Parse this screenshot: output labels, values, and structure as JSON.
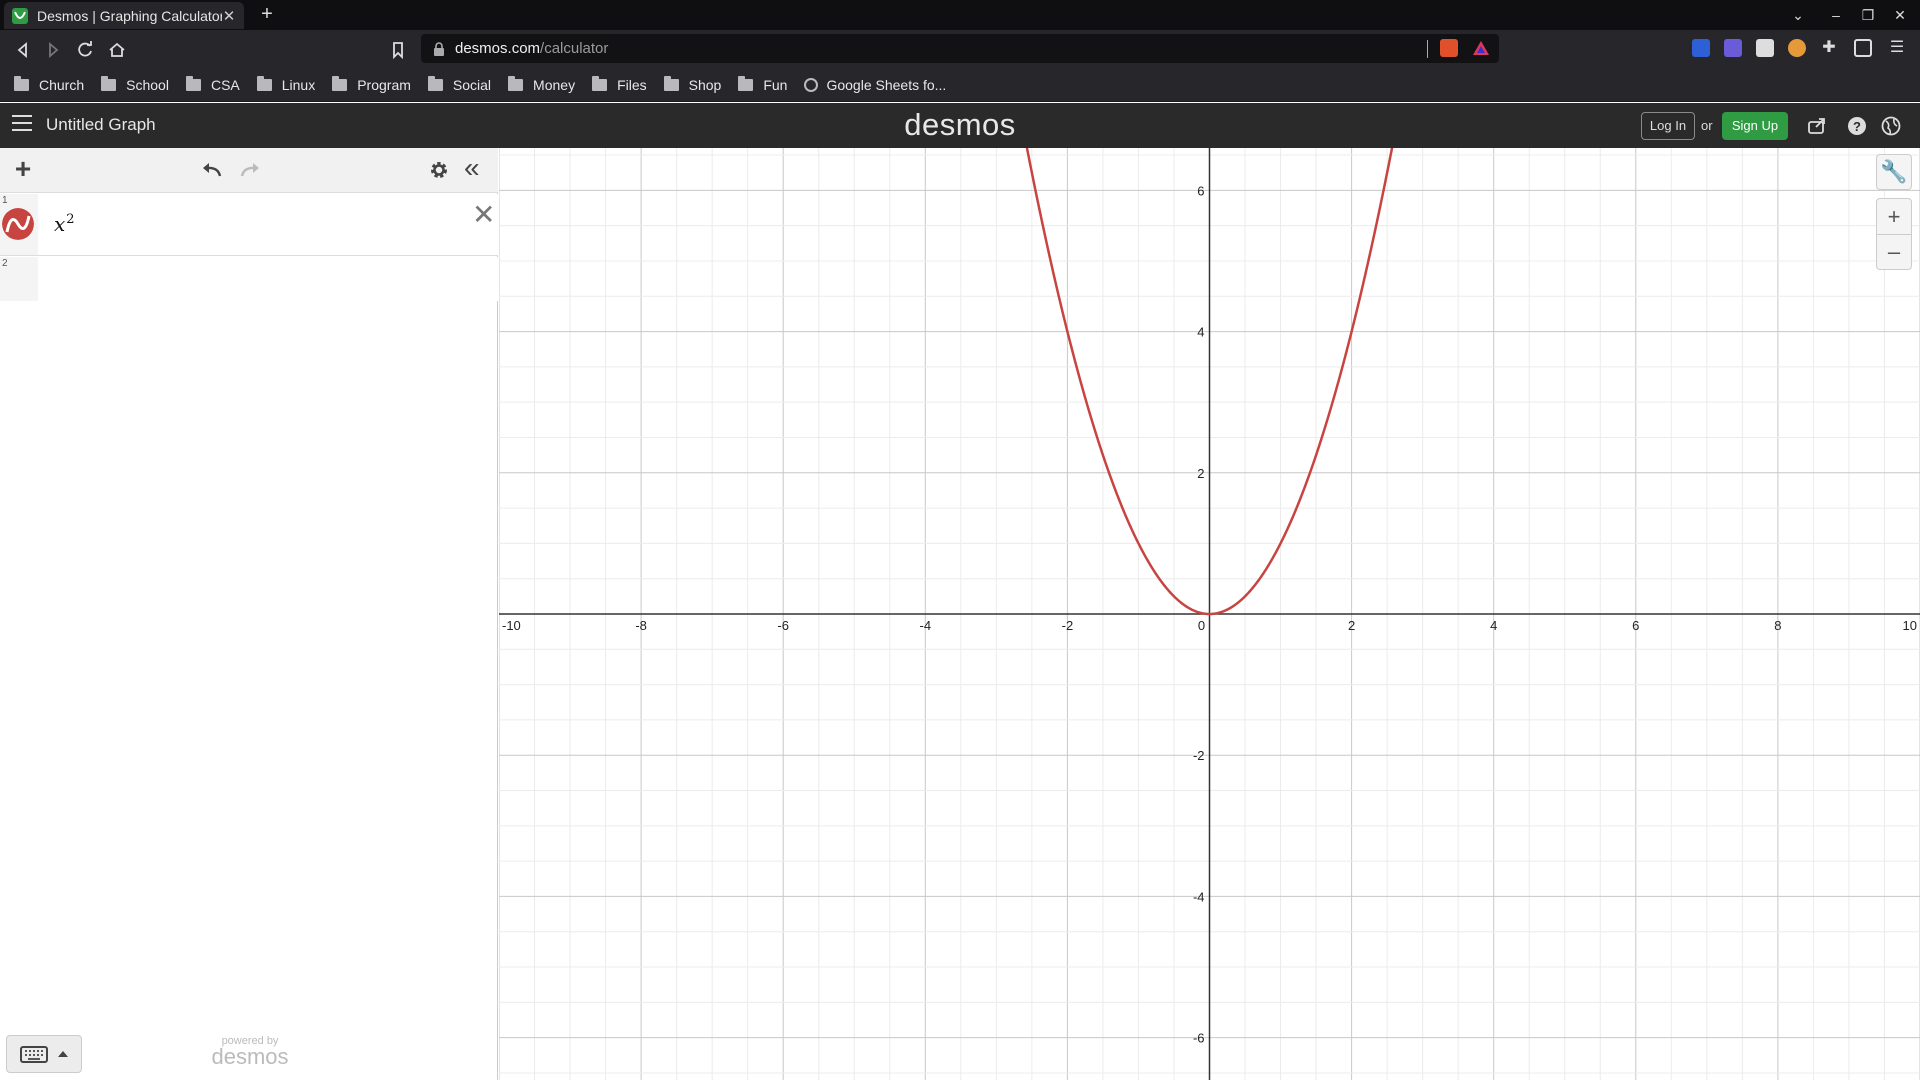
{
  "browser": {
    "tab_title": "Desmos | Graphing Calculator",
    "url_host": "desmos.com",
    "url_path": "/calculator",
    "bookmarks": [
      "Church",
      "School",
      "CSA",
      "Linux",
      "Program",
      "Social",
      "Money",
      "Files",
      "Shop",
      "Fun",
      "Google Sheets fo..."
    ]
  },
  "header": {
    "graph_title": "Untitled Graph",
    "logo": "desmos",
    "login_label": "Log In",
    "or_label": "or",
    "signup_label": "Sign Up",
    "signup_color": "#2f9b42"
  },
  "expressions": [
    {
      "index": "1",
      "base": "x",
      "exponent": "2",
      "color": "#c74440"
    },
    {
      "index": "2",
      "base": "",
      "exponent": ""
    }
  ],
  "footer": {
    "powered_by": "powered by",
    "logo": "desmos"
  },
  "chart_data": {
    "type": "line",
    "series": [
      {
        "expression": "x^2",
        "color": "#c74440"
      }
    ],
    "xlim": [
      -10,
      10
    ],
    "ylim": [
      -6.6,
      6.6
    ],
    "x_ticks": [
      "-10",
      "-8",
      "-6",
      "-4",
      "-2",
      "0",
      "2",
      "4",
      "6",
      "8",
      "10"
    ],
    "y_ticks": [
      "-6",
      "-4",
      "-2",
      "2",
      "4",
      "6"
    ],
    "grid": true
  }
}
